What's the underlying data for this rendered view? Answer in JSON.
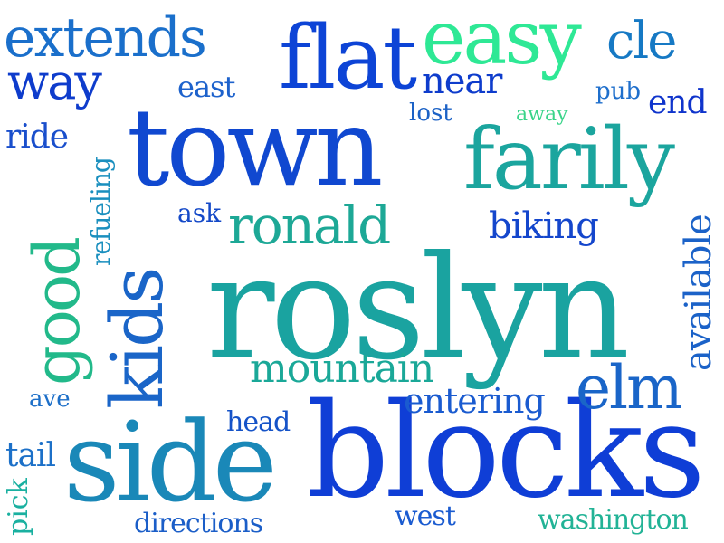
{
  "words": {
    "roslyn": {
      "text": "roslyn",
      "color": "#1aa3a0",
      "orientation": "horizontal"
    },
    "blocks": {
      "text": "blocks",
      "color": "#0f3ed6",
      "orientation": "horizontal"
    },
    "town": {
      "text": "town",
      "color": "#1048d0",
      "orientation": "horizontal"
    },
    "side": {
      "text": "side",
      "color": "#1a88b8",
      "orientation": "horizontal"
    },
    "farily": {
      "text": "farily",
      "color": "#1ba59e",
      "orientation": "horizontal"
    },
    "flat": {
      "text": "flat",
      "color": "#0d44d6",
      "orientation": "horizontal"
    },
    "easy": {
      "text": "easy",
      "color": "#2ee895",
      "orientation": "horizontal"
    },
    "cle": {
      "text": "cle",
      "color": "#1679c4",
      "orientation": "horizontal"
    },
    "extends": {
      "text": "extends",
      "color": "#1a6fcb",
      "orientation": "horizontal"
    },
    "way": {
      "text": "way",
      "color": "#0e3ccc",
      "orientation": "horizontal"
    },
    "east": {
      "text": "east",
      "color": "#1d62cc",
      "orientation": "horizontal"
    },
    "near": {
      "text": "near",
      "color": "#0e3ccc",
      "orientation": "horizontal"
    },
    "pub": {
      "text": "pub",
      "color": "#1f6fcc",
      "orientation": "horizontal"
    },
    "end": {
      "text": "end",
      "color": "#0f34cc",
      "orientation": "horizontal"
    },
    "lost": {
      "text": "lost",
      "color": "#1c62c6",
      "orientation": "horizontal"
    },
    "away": {
      "text": "away",
      "color": "#3ad48a",
      "orientation": "horizontal"
    },
    "ride": {
      "text": "ride",
      "color": "#1a4fcc",
      "orientation": "horizontal"
    },
    "good": {
      "text": "good",
      "color": "#22b98a",
      "orientation": "vertical"
    },
    "refueling": {
      "text": "refueling",
      "color": "#1a8fbe",
      "orientation": "vertical"
    },
    "kids": {
      "text": "kids",
      "color": "#1a65c8",
      "orientation": "vertical"
    },
    "ask": {
      "text": "ask",
      "color": "#1449c8",
      "orientation": "horizontal"
    },
    "ronald": {
      "text": "ronald",
      "color": "#1da896",
      "orientation": "horizontal"
    },
    "biking": {
      "text": "biking",
      "color": "#1446cc",
      "orientation": "horizontal"
    },
    "available": {
      "text": "available",
      "color": "#1b62c8",
      "orientation": "vertical"
    },
    "mountain": {
      "text": "mountain",
      "color": "#1aa898",
      "orientation": "horizontal"
    },
    "elm": {
      "text": "elm",
      "color": "#1a65c8",
      "orientation": "horizontal"
    },
    "entering": {
      "text": "entering",
      "color": "#1a5bd0",
      "orientation": "horizontal"
    },
    "ave": {
      "text": "ave",
      "color": "#1d6fc8",
      "orientation": "horizontal"
    },
    "head": {
      "text": "head",
      "color": "#1553c8",
      "orientation": "horizontal"
    },
    "tail": {
      "text": "tail",
      "color": "#1c70c8",
      "orientation": "horizontal"
    },
    "pick": {
      "text": "pick",
      "color": "#1ab0a0",
      "orientation": "vertical"
    },
    "directions": {
      "text": "directions",
      "color": "#1b5ec8",
      "orientation": "horizontal"
    },
    "west": {
      "text": "west",
      "color": "#1a5bd0",
      "orientation": "horizontal"
    },
    "washington": {
      "text": "washington",
      "color": "#22b396",
      "orientation": "horizontal"
    }
  }
}
